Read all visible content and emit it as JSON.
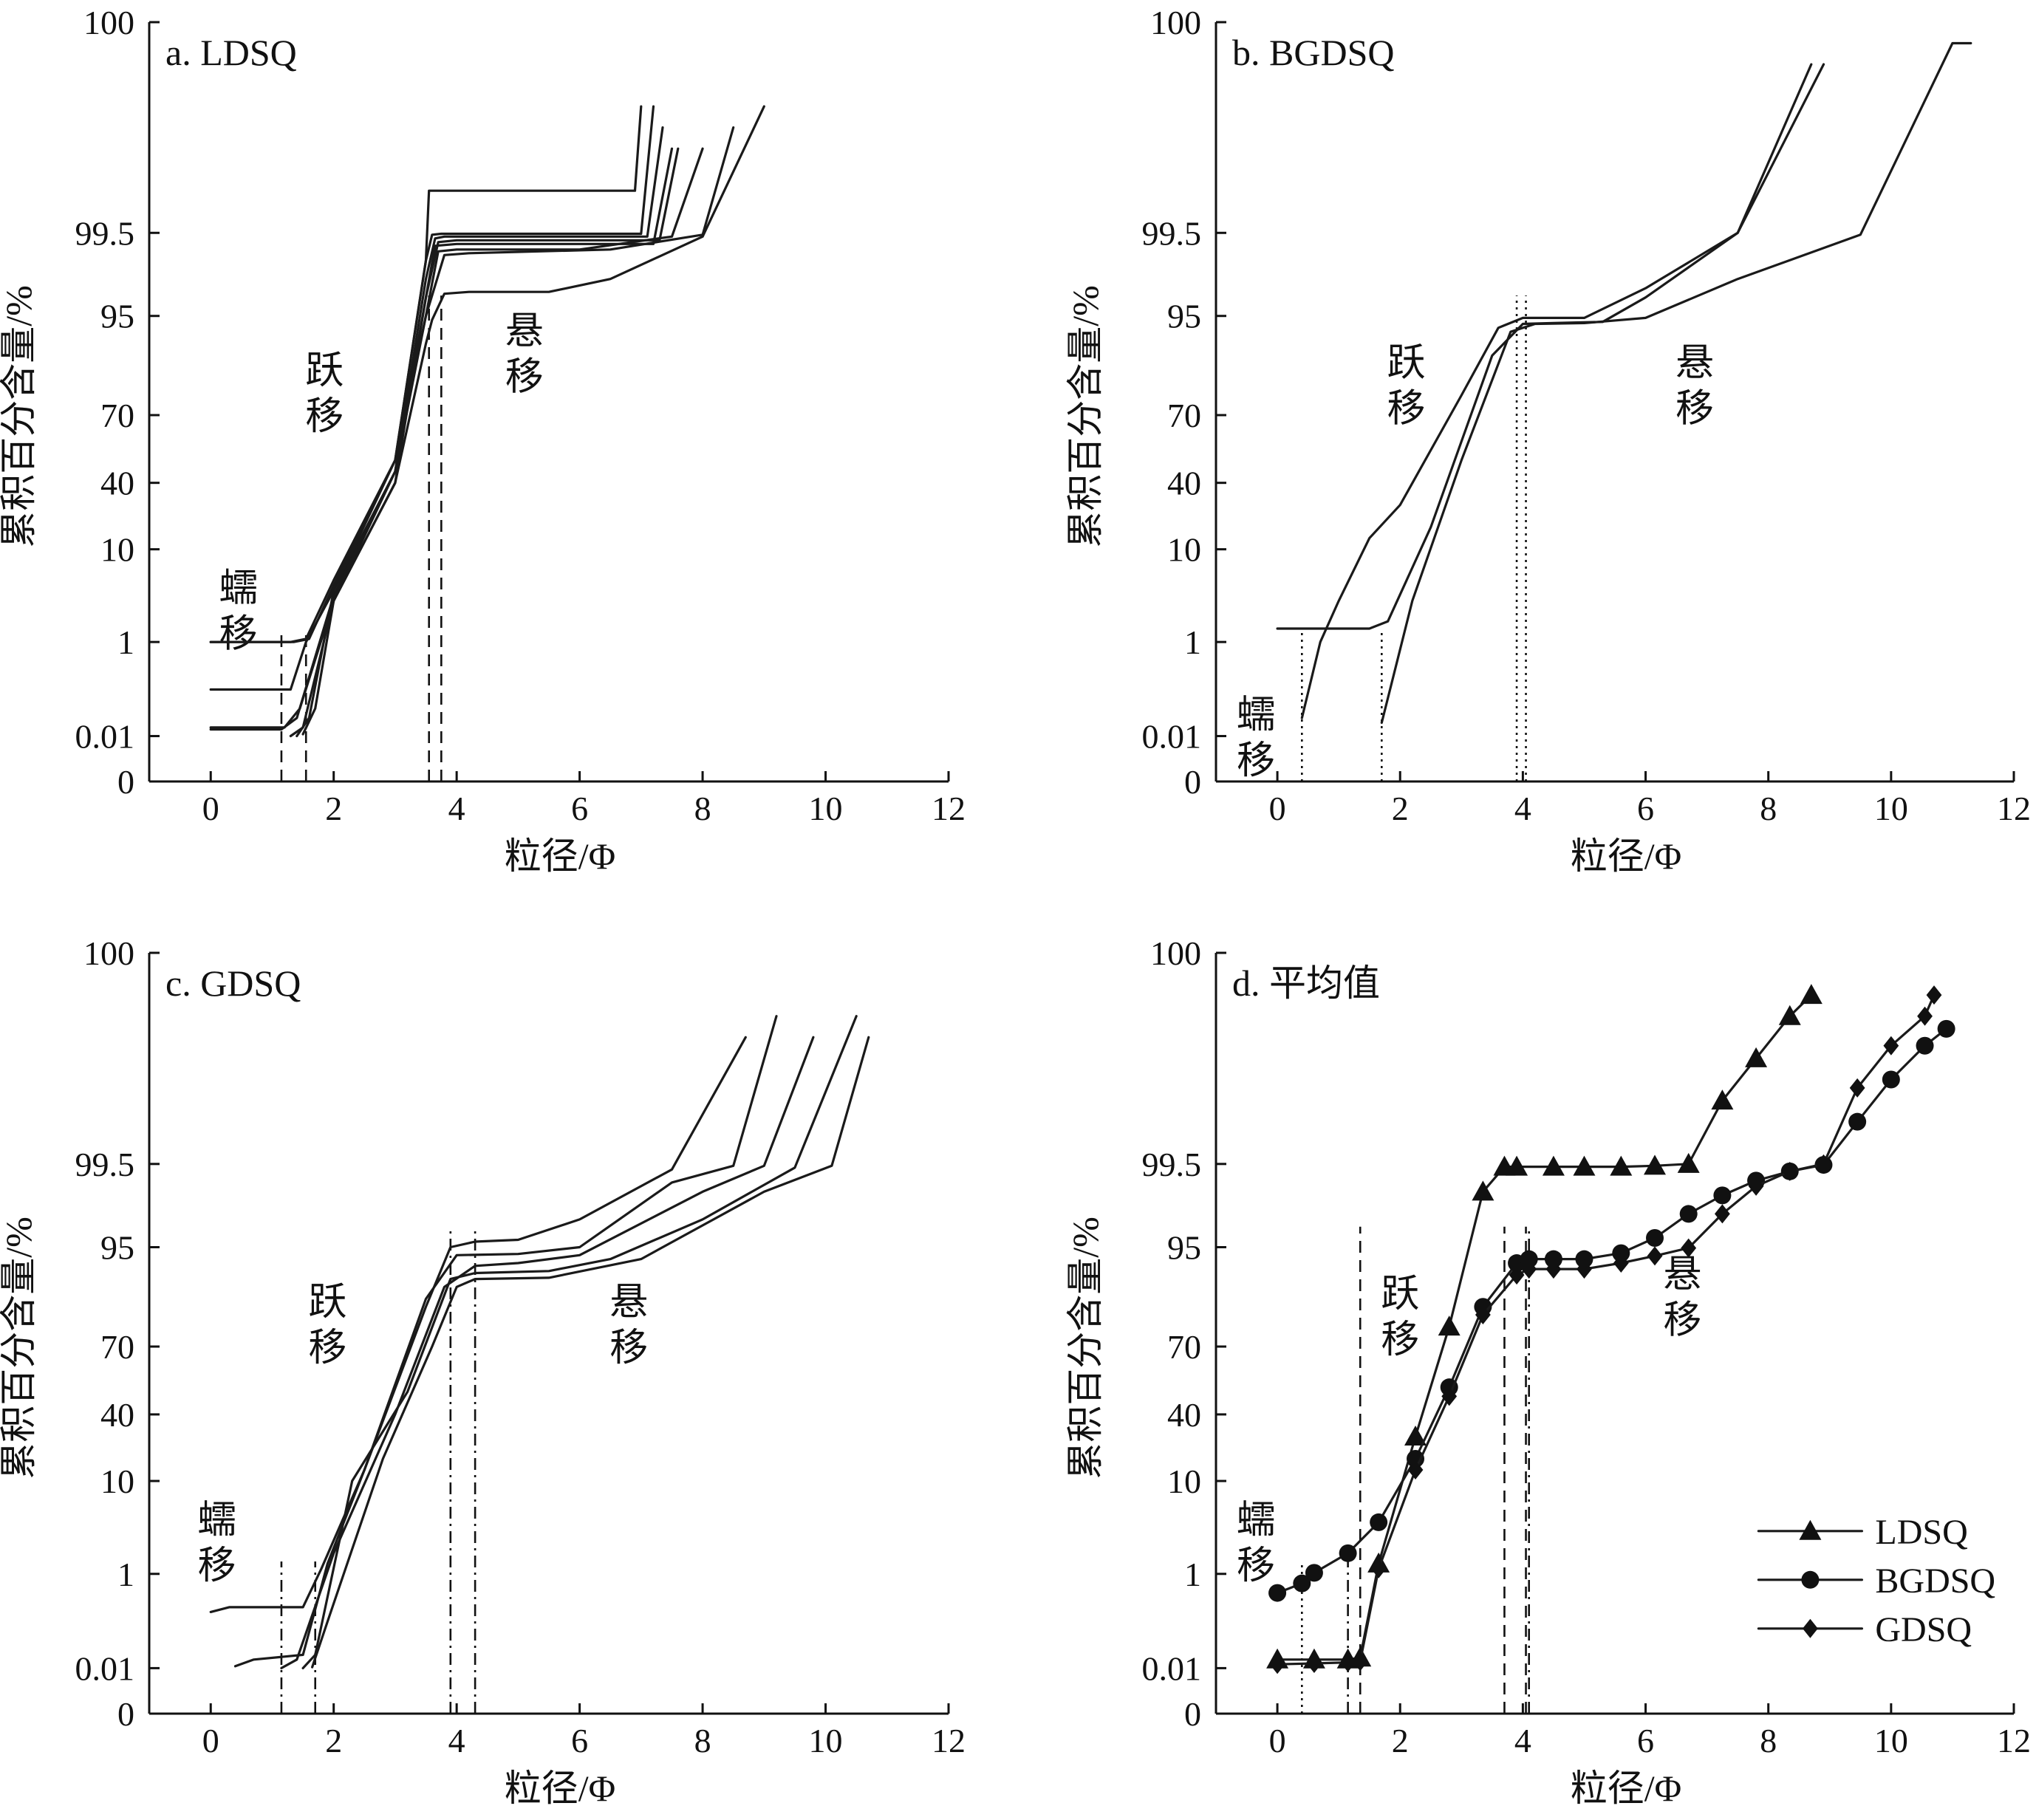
{
  "figure": {
    "y_axis_label": "累积百分含量/%",
    "x_axis_label": "粒径/Φ"
  },
  "chart_data": [
    {
      "type": "line",
      "title": "a. LDSQ",
      "xlabel": "粒径/Φ",
      "ylabel": "累积百分含量/%",
      "xlim": [
        -1,
        12
      ],
      "x_ticks": [
        0,
        2,
        4,
        6,
        8,
        10,
        12
      ],
      "y_scale": "probability",
      "y_ticks": [
        "0",
        "0.01",
        "1",
        "10",
        "40",
        "70",
        "95",
        "99.5",
        "100"
      ],
      "y_tick_values": [
        0,
        0.01,
        1,
        10,
        40,
        70,
        95,
        99.5,
        100
      ],
      "annotations": [
        {
          "text": "蠕移",
          "x": 0.45,
          "y": 5
        },
        {
          "text": "跃移",
          "x": 1.85,
          "y": 78
        },
        {
          "text": "悬移",
          "x": 5.1,
          "y": 88
        }
      ],
      "vlines": [
        {
          "x": 1.15,
          "style": "dashed"
        },
        {
          "x": 1.55,
          "style": "dashed"
        },
        {
          "x": 3.55,
          "style": "dashed"
        },
        {
          "x": 3.75,
          "style": "dashed"
        }
      ],
      "series": [
        {
          "points": [
            [
              0,
              1
            ],
            [
              1.3,
              1
            ],
            [
              1.55,
              1.3
            ],
            [
              2,
              7
            ],
            [
              3,
              50
            ],
            [
              3.5,
              98
            ],
            [
              3.55,
              99.6
            ],
            [
              3.7,
              99.6
            ],
            [
              6.9,
              99.6
            ],
            [
              7,
              99.8
            ]
          ]
        },
        {
          "points": [
            [
              0,
              1
            ],
            [
              1.35,
              1
            ],
            [
              1.6,
              1.3
            ],
            [
              2,
              6.5
            ],
            [
              3,
              50
            ],
            [
              3.5,
              98
            ],
            [
              3.6,
              99.4
            ],
            [
              3.75,
              99.45
            ],
            [
              7,
              99.45
            ],
            [
              7.2,
              99.8
            ]
          ]
        },
        {
          "points": [
            [
              0,
              0.5
            ],
            [
              1.3,
              0.5
            ],
            [
              1.55,
              1
            ],
            [
              2,
              6
            ],
            [
              3,
              45
            ],
            [
              3.5,
              97
            ],
            [
              3.65,
              99.2
            ],
            [
              3.8,
              99.3
            ],
            [
              7.1,
              99.3
            ],
            [
              7.35,
              99.75
            ]
          ]
        },
        {
          "points": [
            [
              0,
              0.1
            ],
            [
              1.2,
              0.1
            ],
            [
              1.45,
              0.3
            ],
            [
              2,
              5
            ],
            [
              3,
              40
            ],
            [
              3.5,
              96
            ],
            [
              3.7,
              99
            ],
            [
              4,
              99.1
            ],
            [
              7.3,
              99.1
            ],
            [
              7.6,
              99.7
            ]
          ]
        },
        {
          "points": [
            [
              0,
              0.08
            ],
            [
              1.15,
              0.08
            ],
            [
              1.4,
              0.2
            ],
            [
              2,
              5.5
            ],
            [
              3,
              45
            ],
            [
              3.5,
              96
            ],
            [
              3.65,
              98.8
            ],
            [
              4,
              98.9
            ],
            [
              7.2,
              98.9
            ],
            [
              7.5,
              99.7
            ]
          ]
        },
        {
          "points": [
            [
              1.3,
              0.01
            ],
            [
              1.5,
              0.1
            ],
            [
              2,
              5
            ],
            [
              3,
              45
            ],
            [
              3.5,
              95
            ],
            [
              3.7,
              98.5
            ],
            [
              4,
              98.6
            ],
            [
              6,
              98.6
            ],
            [
              7.5,
              99.3
            ],
            [
              8,
              99.7
            ]
          ]
        },
        {
          "points": [
            [
              1.4,
              0.01
            ],
            [
              1.6,
              0.2
            ],
            [
              2,
              6
            ],
            [
              3,
              50
            ],
            [
              3.5,
              95
            ],
            [
              3.8,
              98.3
            ],
            [
              4.2,
              98.4
            ],
            [
              6.5,
              98.6
            ],
            [
              8,
              99.4
            ],
            [
              8.5,
              99.75
            ]
          ]
        },
        {
          "points": [
            [
              1.5,
              0.03
            ],
            [
              1.7,
              0.3
            ],
            [
              2,
              5
            ],
            [
              3,
              40
            ],
            [
              3.5,
              88
            ],
            [
              3.6,
              94
            ],
            [
              3.8,
              96.2
            ],
            [
              4.2,
              96.3
            ],
            [
              5.5,
              96.3
            ],
            [
              6.5,
              97
            ],
            [
              8,
              99.3
            ],
            [
              9,
              99.8
            ]
          ]
        }
      ]
    },
    {
      "type": "line",
      "title": "b. BGDSQ",
      "xlabel": "粒径/Φ",
      "ylabel": "累积百分含量/%",
      "xlim": [
        -1,
        12
      ],
      "x_ticks": [
        0,
        2,
        4,
        6,
        8,
        10,
        12
      ],
      "y_scale": "probability",
      "y_ticks": [
        "0",
        "0.01",
        "1",
        "10",
        "40",
        "70",
        "95",
        "99.5",
        "100"
      ],
      "y_tick_values": [
        0,
        0.01,
        1,
        10,
        40,
        70,
        95,
        99.5,
        100
      ],
      "annotations": [
        {
          "text": "蠕移",
          "x": -0.35,
          "y": 0.1
        },
        {
          "text": "跃移",
          "x": 2.1,
          "y": 80
        },
        {
          "text": "悬移",
          "x": 6.8,
          "y": 80
        }
      ],
      "vlines": [
        {
          "x": 0.4,
          "style": "dotted"
        },
        {
          "x": 1.7,
          "style": "dotted"
        },
        {
          "x": 3.9,
          "style": "dotted"
        },
        {
          "x": 4.05,
          "style": "dotted"
        }
      ],
      "series": [
        {
          "points": [
            [
              0,
              2.3
            ],
            [
              1.5,
              2.3
            ],
            [
              1.8,
              3
            ],
            [
              2.5,
              20
            ],
            [
              3.5,
              85
            ],
            [
              4,
              93
            ],
            [
              4.5,
              93.2
            ],
            [
              5.3,
              93.5
            ],
            [
              6,
              96
            ],
            [
              7.5,
              99.5
            ],
            [
              8.9,
              99.9
            ]
          ]
        },
        {
          "points": [
            [
              0.4,
              0.2
            ],
            [
              0.7,
              1
            ],
            [
              1,
              5
            ],
            [
              1.5,
              15
            ],
            [
              2,
              30
            ],
            [
              3,
              75
            ],
            [
              3.6,
              92
            ],
            [
              4,
              94.5
            ],
            [
              5,
              94.5
            ],
            [
              6,
              96.5
            ],
            [
              7.5,
              99.5
            ],
            [
              8.7,
              99.9
            ]
          ]
        },
        {
          "points": [
            [
              1.7,
              0.15
            ],
            [
              2.2,
              5
            ],
            [
              3,
              50
            ],
            [
              3.8,
              91
            ],
            [
              4.2,
              93
            ],
            [
              5,
              93.2
            ],
            [
              6,
              94.5
            ],
            [
              7.5,
              97
            ],
            [
              9.5,
              99.4
            ],
            [
              11,
              99.95
            ],
            [
              11.3,
              99.95
            ]
          ]
        }
      ]
    },
    {
      "type": "line",
      "title": "c. GDSQ",
      "xlabel": "粒径/Φ",
      "ylabel": "累积百分含量/%",
      "xlim": [
        -1,
        12
      ],
      "x_ticks": [
        0,
        2,
        4,
        6,
        8,
        10,
        12
      ],
      "y_scale": "probability",
      "y_ticks": [
        "0",
        "0.01",
        "1",
        "10",
        "40",
        "70",
        "95",
        "99.5",
        "100"
      ],
      "y_tick_values": [
        0,
        0.01,
        1,
        10,
        40,
        70,
        95,
        99.5,
        100
      ],
      "annotations": [
        {
          "text": "蠕移",
          "x": 0.1,
          "y": 5
        },
        {
          "text": "跃移",
          "x": 1.9,
          "y": 78
        },
        {
          "text": "悬移",
          "x": 6.8,
          "y": 78
        }
      ],
      "vlines": [
        {
          "x": 1.15,
          "style": "dashdot"
        },
        {
          "x": 1.7,
          "style": "dashdot"
        },
        {
          "x": 3.9,
          "style": "dashdot"
        },
        {
          "x": 4.3,
          "style": "dashdot"
        }
      ],
      "series": [
        {
          "points": [
            [
              0,
              0.6
            ],
            [
              0.3,
              0.65
            ],
            [
              1.5,
              0.65
            ],
            [
              1.8,
              1.5
            ],
            [
              2.5,
              15
            ],
            [
              3.5,
              80
            ],
            [
              3.9,
              95
            ],
            [
              4.3,
              95.3
            ],
            [
              5,
              95.4
            ],
            [
              6,
              96.5
            ],
            [
              7.5,
              99.2
            ],
            [
              8.7,
              99.8
            ]
          ]
        },
        {
          "points": [
            [
              0.4,
              0.03
            ],
            [
              0.7,
              0.1
            ],
            [
              1.5,
              0.15
            ],
            [
              1.9,
              2
            ],
            [
              2.5,
              15
            ],
            [
              3.5,
              82
            ],
            [
              4,
              93
            ],
            [
              5,
              93.3
            ],
            [
              6,
              95
            ],
            [
              7.5,
              98.5
            ],
            [
              8.5,
              99.4
            ],
            [
              9.2,
              99.85
            ]
          ]
        },
        {
          "points": [
            [
              1.15,
              0.01
            ],
            [
              1.4,
              0.1
            ],
            [
              2,
              3
            ],
            [
              3,
              40
            ],
            [
              3.8,
              85
            ],
            [
              4.3,
              90.3
            ],
            [
              5,
              91
            ],
            [
              6,
              93
            ],
            [
              8,
              98
            ],
            [
              9,
              99.4
            ],
            [
              9.8,
              99.8
            ]
          ]
        },
        {
          "points": [
            [
              1.5,
              0.01
            ],
            [
              1.7,
              0.15
            ],
            [
              2.3,
              10
            ],
            [
              3.2,
              50
            ],
            [
              3.9,
              87
            ],
            [
              4.3,
              88.5
            ],
            [
              5.5,
              89
            ],
            [
              6.5,
              92
            ],
            [
              8,
              96.5
            ],
            [
              9.5,
              99.3
            ],
            [
              10.5,
              99.85
            ]
          ]
        },
        {
          "points": [
            [
              1.65,
              0.02
            ],
            [
              1.9,
              0.5
            ],
            [
              2.8,
              20
            ],
            [
              3.6,
              70
            ],
            [
              4,
              85
            ],
            [
              4.3,
              87
            ],
            [
              5.5,
              87.3
            ],
            [
              7,
              92
            ],
            [
              9,
              98
            ],
            [
              10.1,
              99.4
            ],
            [
              10.7,
              99.8
            ]
          ]
        }
      ]
    },
    {
      "type": "line",
      "title": "d. 平均值",
      "xlabel": "粒径/Φ",
      "ylabel": "累积百分含量/%",
      "xlim": [
        -1,
        12
      ],
      "x_ticks": [
        0,
        2,
        4,
        6,
        8,
        10,
        12
      ],
      "y_scale": "probability",
      "y_ticks": [
        "0",
        "0.01",
        "1",
        "10",
        "40",
        "70",
        "95",
        "99.5",
        "100"
      ],
      "y_tick_values": [
        0,
        0.01,
        1,
        10,
        40,
        70,
        95,
        99.5,
        100
      ],
      "legend": "bottom-right",
      "annotations": [
        {
          "text": "蠕移",
          "x": -0.35,
          "y": 5
        },
        {
          "text": "跃移",
          "x": 2,
          "y": 80
        },
        {
          "text": "悬移",
          "x": 6.6,
          "y": 85
        }
      ],
      "vlines": [
        {
          "x": 0.4,
          "style": "dotted"
        },
        {
          "x": 1.15,
          "style": "dashdot"
        },
        {
          "x": 1.35,
          "style": "dashed"
        },
        {
          "x": 3.7,
          "style": "dashed"
        },
        {
          "x": 4.05,
          "style": "dashed"
        },
        {
          "x": 4.1,
          "style": "dashdot"
        }
      ],
      "series": [
        {
          "name": "LDSQ",
          "marker": "triangle",
          "x": [
            0,
            0.6,
            1.15,
            1.35,
            1.65,
            2.25,
            2.8,
            3.35,
            3.7,
            3.9,
            4.5,
            5,
            5.6,
            6.15,
            6.7,
            7.25,
            7.8,
            8.35,
            8.7
          ],
          "values": [
            0.1,
            0.1,
            0.1,
            0.12,
            2,
            30,
            75,
            98,
            99.35,
            99.35,
            99.35,
            99.35,
            99.35,
            99.4,
            99.5,
            99.65,
            99.75,
            99.85,
            99.9
          ]
        },
        {
          "name": "BGDSQ",
          "marker": "circle",
          "x": [
            0,
            0.4,
            0.6,
            1.15,
            1.65,
            2.25,
            2.8,
            3.35,
            3.9,
            4.1,
            4.5,
            5,
            5.6,
            6.15,
            6.7,
            7.25,
            7.8,
            8.35,
            8.9,
            9.45,
            10,
            10.55,
            10.9
          ],
          "values": [
            0.8,
            0.9,
            1.1,
            3,
            6,
            20,
            52,
            80,
            91,
            92,
            92,
            92,
            93.5,
            95.5,
            96.8,
            97.8,
            98.6,
            99.1,
            99.45,
            99.6,
            99.7,
            99.78,
            99.82
          ]
        },
        {
          "name": "GDSQ",
          "marker": "diamond",
          "x": [
            0,
            0.6,
            1.15,
            1.35,
            1.65,
            2.25,
            2.8,
            3.35,
            3.9,
            4.1,
            4.5,
            5,
            5.6,
            6.15,
            6.7,
            7.25,
            7.8,
            8.35,
            8.9,
            9.45,
            10,
            10.55,
            10.7
          ],
          "values": [
            0.05,
            0.06,
            0.07,
            0.08,
            1.5,
            15,
            48,
            78,
            88,
            89.5,
            89.5,
            89.5,
            91,
            92.8,
            94.8,
            96.8,
            98.3,
            99.1,
            99.5,
            99.68,
            99.78,
            99.85,
            99.9
          ]
        }
      ]
    }
  ]
}
